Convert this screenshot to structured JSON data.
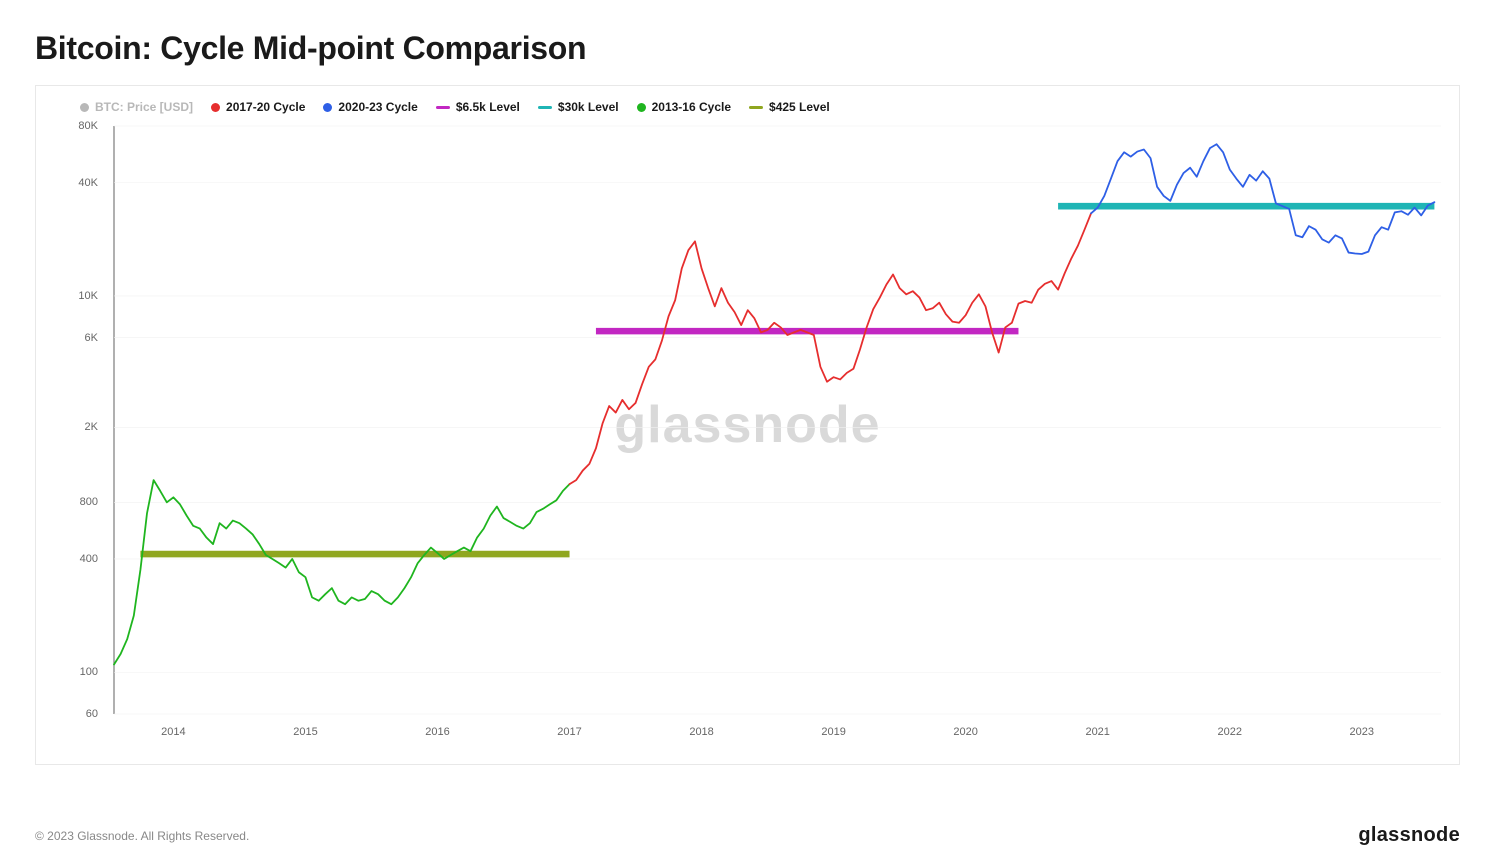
{
  "title": "Bitcoin: Cycle Mid-point Comparison",
  "watermark": "glassnode",
  "copyright": "© 2023 Glassnode. All Rights Reserved.",
  "brand": "glassnode",
  "chart": {
    "type": "line",
    "y_scale": "log",
    "y_ticks": [
      60,
      100,
      400,
      800,
      2000,
      6000,
      10000,
      40000,
      80000
    ],
    "y_tick_labels": [
      "60",
      "100",
      "400",
      "800",
      "2K",
      "6K",
      "10K",
      "40K",
      "80K"
    ],
    "y_min": 60,
    "y_max": 80000,
    "x_min": 2013.55,
    "x_max": 2023.6,
    "x_ticks": [
      2014,
      2015,
      2016,
      2017,
      2018,
      2019,
      2020,
      2021,
      2022,
      2023
    ],
    "x_tick_labels": [
      "2014",
      "2015",
      "2016",
      "2017",
      "2018",
      "2019",
      "2020",
      "2021",
      "2022",
      "2023"
    ],
    "background_color": "#ffffff",
    "grid_color": "#f0f0f0",
    "axis_color": "#888888",
    "tick_font_size": 11,
    "tick_color": "#666666",
    "line_width": 1.8,
    "level_line_width": 2.2,
    "legend": [
      {
        "label": "BTC: Price [USD]",
        "color": "#b8b8b8",
        "marker": "dot",
        "text_color": "#b8b8b8"
      },
      {
        "label": "2017-20 Cycle",
        "color": "#e62e2e",
        "marker": "dot",
        "text_color": "#1a1a1a"
      },
      {
        "label": "2020-23 Cycle",
        "color": "#2e5fe6",
        "marker": "dot",
        "text_color": "#1a1a1a"
      },
      {
        "label": "$6.5k Level",
        "color": "#c227c2",
        "marker": "line",
        "text_color": "#1a1a1a"
      },
      {
        "label": "$30k Level",
        "color": "#1fb5b5",
        "marker": "line",
        "text_color": "#1a1a1a"
      },
      {
        "label": "2013-16 Cycle",
        "color": "#1fb51f",
        "marker": "dot",
        "text_color": "#1a1a1a"
      },
      {
        "label": "$425 Level",
        "color": "#8fa61f",
        "marker": "line",
        "text_color": "#1a1a1a"
      }
    ],
    "levels": [
      {
        "value": 425,
        "x_start": 2013.75,
        "x_end": 2017.0,
        "color": "#8fa61f"
      },
      {
        "value": 6500,
        "x_start": 2017.2,
        "x_end": 2020.4,
        "color": "#c227c2"
      },
      {
        "value": 30000,
        "x_start": 2020.7,
        "x_end": 2023.55,
        "color": "#1fb5b5"
      }
    ],
    "series": [
      {
        "name": "2013-16 Cycle",
        "color": "#1fb51f",
        "x": [
          2013.55,
          2013.6,
          2013.65,
          2013.7,
          2013.75,
          2013.8,
          2013.85,
          2013.9,
          2013.95,
          2014.0,
          2014.05,
          2014.1,
          2014.15,
          2014.2,
          2014.25,
          2014.3,
          2014.35,
          2014.4,
          2014.45,
          2014.5,
          2014.55,
          2014.6,
          2014.65,
          2014.7,
          2014.75,
          2014.8,
          2014.85,
          2014.9,
          2014.95,
          2015.0,
          2015.05,
          2015.1,
          2015.15,
          2015.2,
          2015.25,
          2015.3,
          2015.35,
          2015.4,
          2015.45,
          2015.5,
          2015.55,
          2015.6,
          2015.65,
          2015.7,
          2015.75,
          2015.8,
          2015.85,
          2015.9,
          2015.95,
          2016.0,
          2016.05,
          2016.1,
          2016.15,
          2016.2,
          2016.25,
          2016.3,
          2016.35,
          2016.4,
          2016.45,
          2016.5,
          2016.55,
          2016.6,
          2016.65,
          2016.7,
          2016.75,
          2016.8,
          2016.85,
          2016.9,
          2016.95,
          2017.0
        ],
        "y": [
          110,
          125,
          150,
          200,
          350,
          700,
          1050,
          920,
          800,
          850,
          780,
          680,
          600,
          580,
          520,
          480,
          620,
          580,
          640,
          620,
          580,
          540,
          480,
          420,
          400,
          380,
          360,
          400,
          340,
          320,
          250,
          240,
          260,
          280,
          240,
          230,
          250,
          240,
          245,
          270,
          260,
          240,
          230,
          250,
          280,
          320,
          380,
          420,
          460,
          430,
          400,
          420,
          440,
          460,
          440,
          520,
          580,
          680,
          760,
          660,
          630,
          600,
          580,
          620,
          710,
          740,
          780,
          820,
          920,
          1000
        ]
      },
      {
        "name": "2017-20 Cycle",
        "color": "#e62e2e",
        "x": [
          2017.0,
          2017.05,
          2017.1,
          2017.15,
          2017.2,
          2017.25,
          2017.3,
          2017.35,
          2017.4,
          2017.45,
          2017.5,
          2017.55,
          2017.6,
          2017.65,
          2017.7,
          2017.75,
          2017.8,
          2017.85,
          2017.9,
          2017.95,
          2018.0,
          2018.05,
          2018.1,
          2018.15,
          2018.2,
          2018.25,
          2018.3,
          2018.35,
          2018.4,
          2018.45,
          2018.5,
          2018.55,
          2018.6,
          2018.65,
          2018.7,
          2018.75,
          2018.8,
          2018.85,
          2018.9,
          2018.95,
          2019.0,
          2019.05,
          2019.1,
          2019.15,
          2019.2,
          2019.25,
          2019.3,
          2019.35,
          2019.4,
          2019.45,
          2019.5,
          2019.55,
          2019.6,
          2019.65,
          2019.7,
          2019.75,
          2019.8,
          2019.85,
          2019.9,
          2019.95,
          2020.0,
          2020.05,
          2020.1,
          2020.15,
          2020.2,
          2020.25,
          2020.3,
          2020.35,
          2020.4,
          2020.45,
          2020.5,
          2020.55,
          2020.6,
          2020.65,
          2020.7,
          2020.75,
          2020.8,
          2020.85,
          2020.9,
          2020.95
        ],
        "y": [
          1000,
          1050,
          1180,
          1280,
          1550,
          2100,
          2600,
          2400,
          2800,
          2500,
          2700,
          3400,
          4200,
          4600,
          5800,
          7800,
          9500,
          14000,
          17500,
          19500,
          14000,
          11000,
          8800,
          11000,
          9200,
          8200,
          7000,
          8400,
          7600,
          6400,
          6600,
          7200,
          6800,
          6200,
          6400,
          6600,
          6400,
          6200,
          4200,
          3500,
          3700,
          3600,
          3900,
          4100,
          5200,
          6800,
          8500,
          9800,
          11500,
          13000,
          11000,
          10200,
          10600,
          9800,
          8400,
          8600,
          9200,
          8000,
          7300,
          7200,
          7900,
          9200,
          10200,
          8800,
          6400,
          5000,
          6800,
          7200,
          9100,
          9400,
          9200,
          10800,
          11600,
          12000,
          10800,
          13200,
          15800,
          18500,
          22500,
          27500
        ]
      },
      {
        "name": "2020-23 Cycle",
        "color": "#2e5fe6",
        "x": [
          2020.95,
          2021.0,
          2021.05,
          2021.1,
          2021.15,
          2021.2,
          2021.25,
          2021.3,
          2021.35,
          2021.4,
          2021.45,
          2021.5,
          2021.55,
          2021.6,
          2021.65,
          2021.7,
          2021.75,
          2021.8,
          2021.85,
          2021.9,
          2021.95,
          2022.0,
          2022.05,
          2022.1,
          2022.15,
          2022.2,
          2022.25,
          2022.3,
          2022.35,
          2022.4,
          2022.45,
          2022.5,
          2022.55,
          2022.6,
          2022.65,
          2022.7,
          2022.75,
          2022.8,
          2022.85,
          2022.9,
          2022.95,
          2023.0,
          2023.05,
          2023.1,
          2023.15,
          2023.2,
          2023.25,
          2023.3,
          2023.35,
          2023.4,
          2023.45,
          2023.5,
          2023.55
        ],
        "y": [
          27500,
          29500,
          34000,
          42000,
          52000,
          58000,
          55000,
          58500,
          60000,
          54000,
          38000,
          34000,
          32000,
          39000,
          45000,
          48000,
          43000,
          52000,
          61000,
          64000,
          58000,
          47000,
          42000,
          38000,
          44000,
          41000,
          46000,
          42000,
          31000,
          30000,
          29000,
          21000,
          20500,
          23500,
          22500,
          20000,
          19200,
          21000,
          20200,
          17000,
          16800,
          16700,
          17200,
          21000,
          23200,
          22500,
          27800,
          28200,
          27000,
          29500,
          26800,
          30200,
          31500
        ]
      }
    ]
  }
}
